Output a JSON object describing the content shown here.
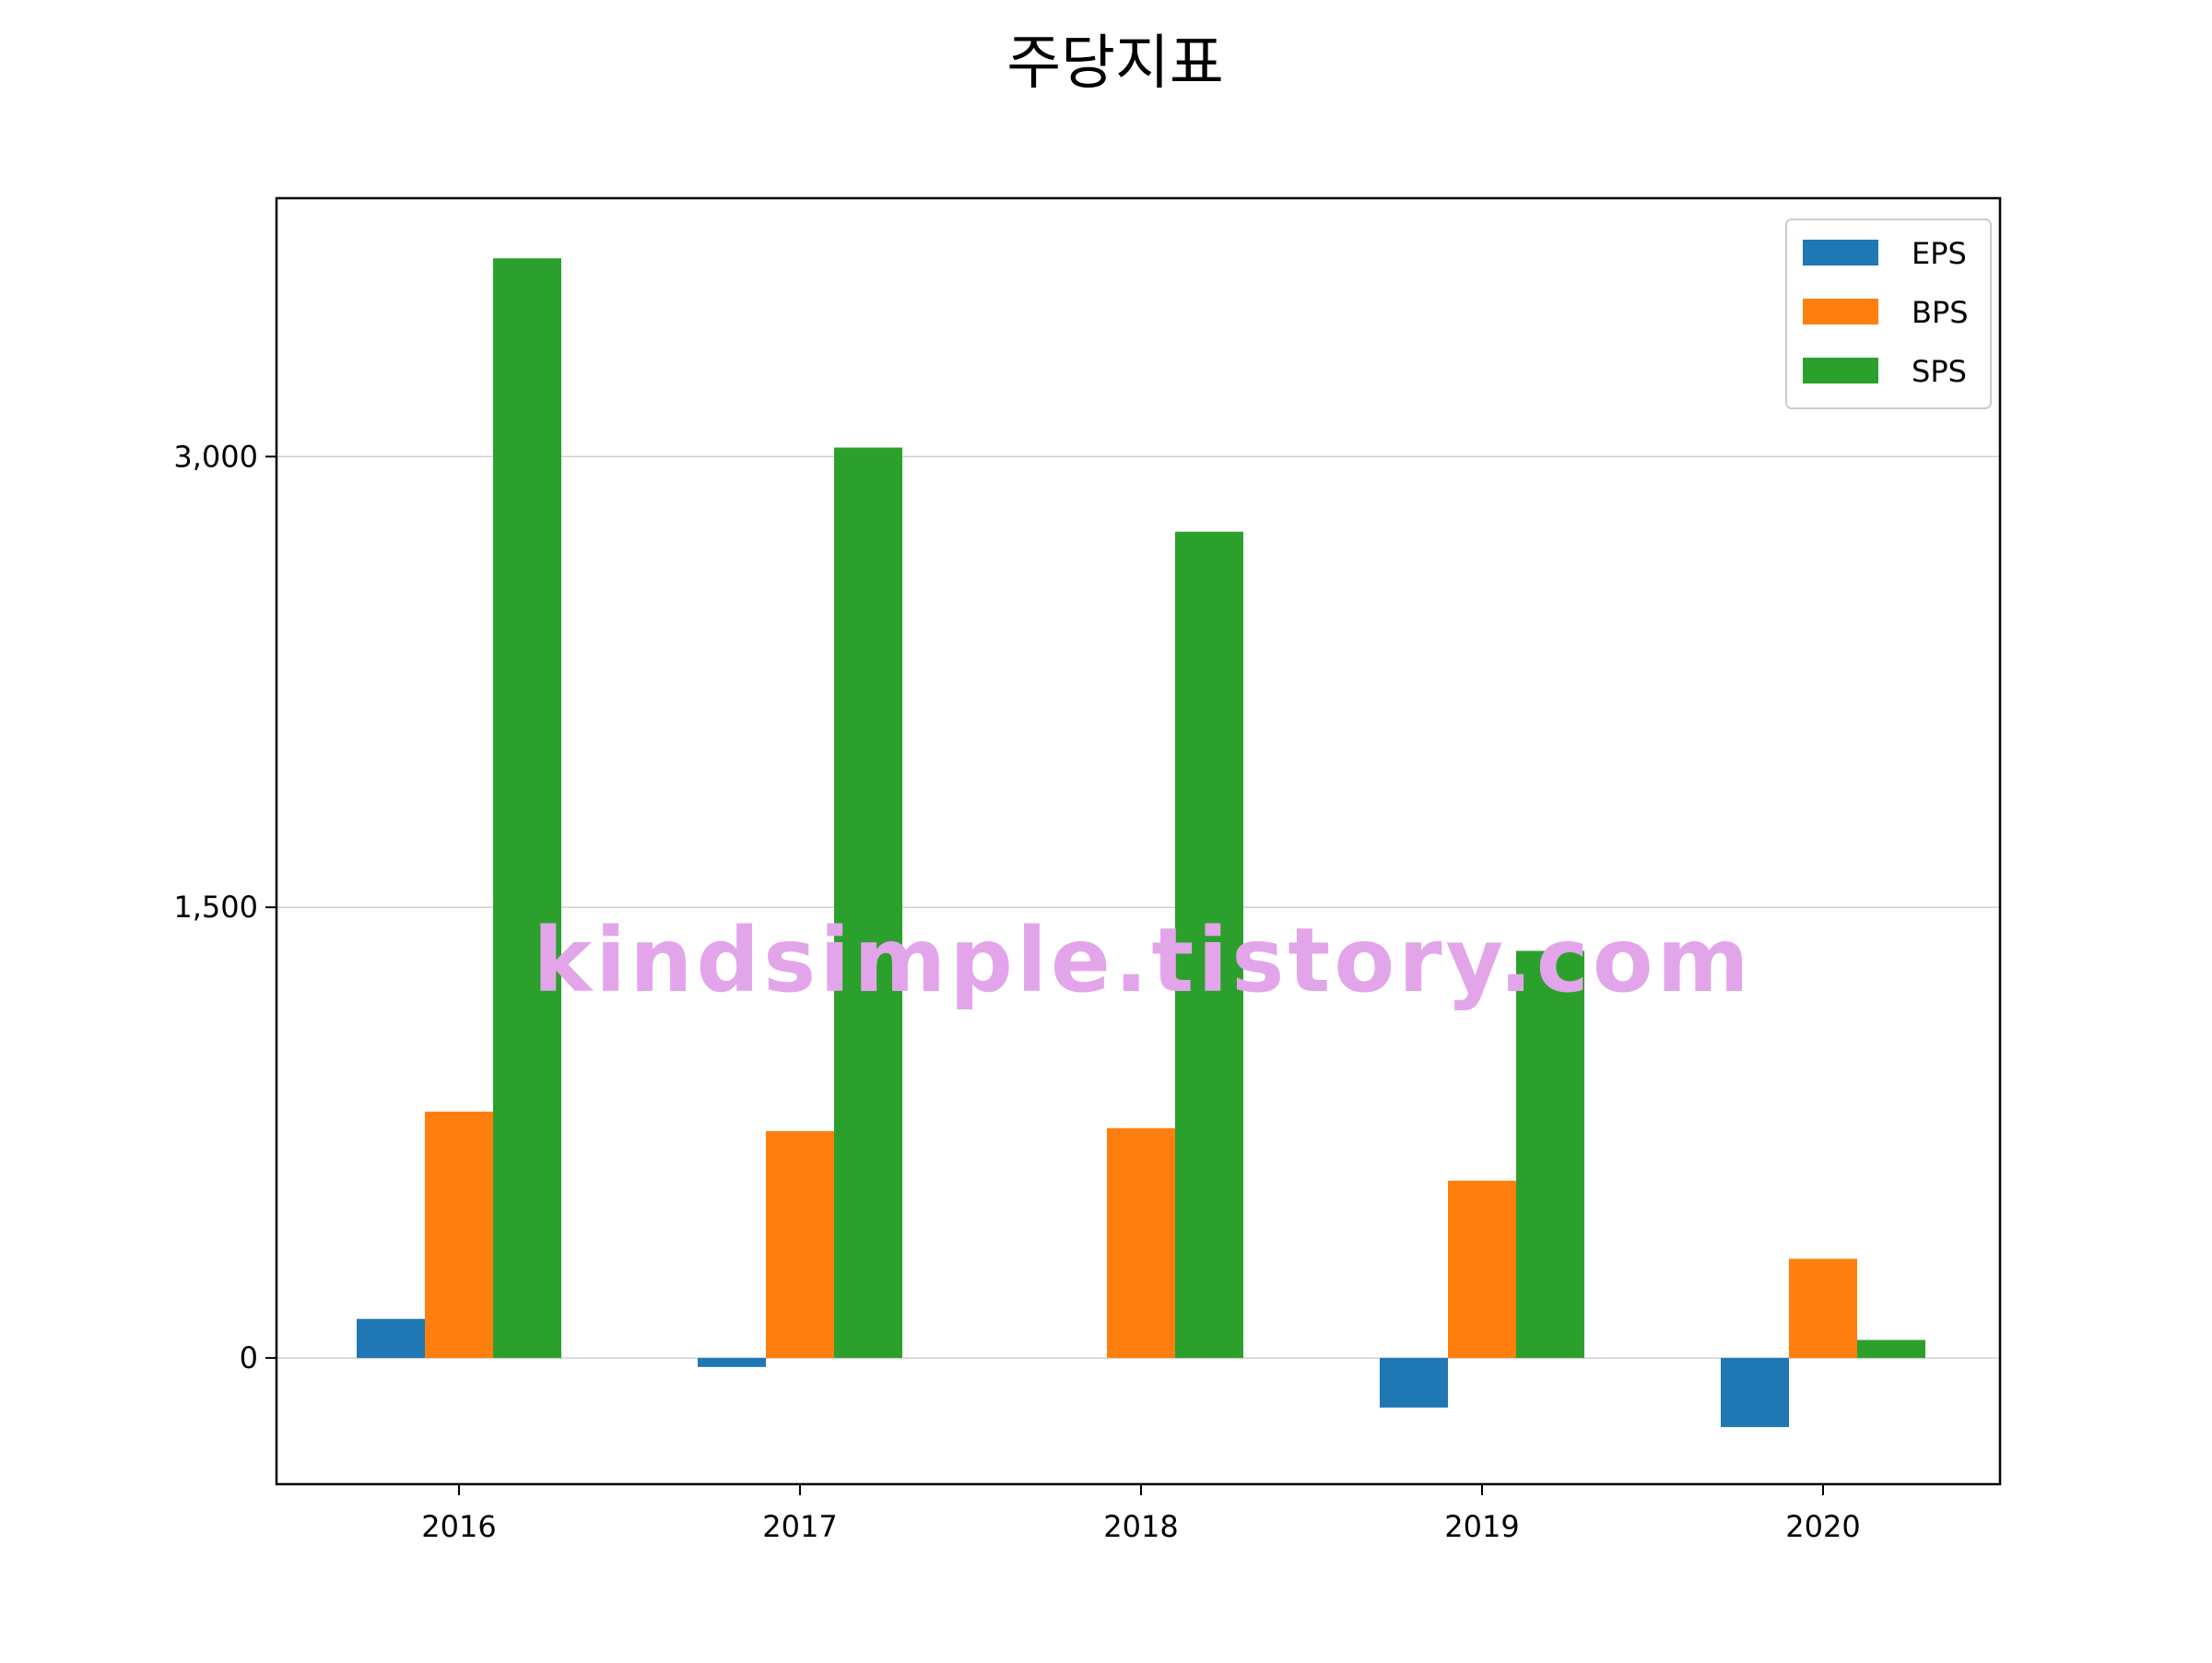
{
  "chart_data": {
    "type": "bar",
    "title": "주당지표",
    "xlabel": "",
    "ylabel": "",
    "categories": [
      "2016",
      "2017",
      "2018",
      "2019",
      "2020"
    ],
    "series": [
      {
        "name": "EPS",
        "color": "#1f77b4",
        "values": [
          130,
          -30,
          0,
          -165,
          -230
        ]
      },
      {
        "name": "BPS",
        "color": "#ff7f0e",
        "values": [
          820,
          755,
          765,
          590,
          330
        ]
      },
      {
        "name": "SPS",
        "color": "#2ca02c",
        "values": [
          3660,
          3030,
          2750,
          1355,
          60
        ]
      }
    ],
    "ylim": [
      -420,
      3860
    ],
    "yticks": [
      0,
      1500,
      3000
    ],
    "ytick_labels": [
      "0",
      "1,500",
      "3,000"
    ],
    "grid": "horizontal",
    "legend_position": "top-right"
  },
  "watermark": {
    "text": "kindsimple.tistory.com",
    "color": "#e3a5e9"
  }
}
